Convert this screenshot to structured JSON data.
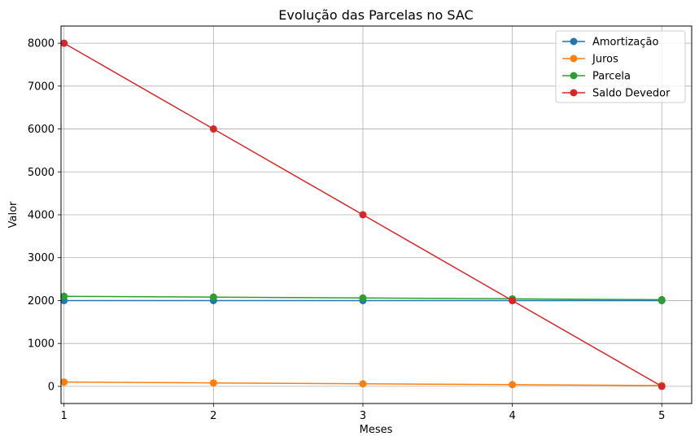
{
  "chart_data": {
    "type": "line",
    "title": "Evolução das Parcelas no SAC",
    "xlabel": "Meses",
    "ylabel": "Valor",
    "x": [
      1,
      2,
      3,
      4,
      5
    ],
    "x_ticks": [
      "1",
      "2",
      "3",
      "4",
      "5"
    ],
    "y_ticks": [
      "0",
      "1000",
      "2000",
      "3000",
      "4000",
      "5000",
      "6000",
      "7000",
      "8000"
    ],
    "xlim": [
      0.98,
      5.2
    ],
    "ylim": [
      -400,
      8400
    ],
    "grid": true,
    "legend_position": "top-right",
    "series": [
      {
        "name": "Amortização",
        "color": "#1f77b4",
        "values": [
          2000,
          2000,
          2000,
          2000,
          2000
        ]
      },
      {
        "name": "Juros",
        "color": "#ff7f0e",
        "values": [
          100,
          80,
          60,
          40,
          20
        ]
      },
      {
        "name": "Parcela",
        "color": "#2ca02c",
        "values": [
          2100,
          2080,
          2060,
          2040,
          2020
        ]
      },
      {
        "name": "Saldo Devedor",
        "color": "#d62728",
        "values": [
          8000,
          6000,
          4000,
          2000,
          0
        ]
      }
    ]
  }
}
